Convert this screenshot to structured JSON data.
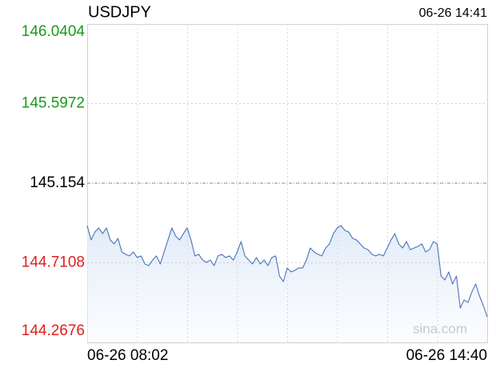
{
  "chart_data": {
    "type": "line",
    "title": "USDJPY",
    "timestamp": "06-26 14:41",
    "watermark": "sina.com",
    "categories": [
      "06-26 08:02",
      null,
      null,
      null,
      null,
      null,
      null,
      null,
      null,
      null,
      null,
      null,
      null,
      null,
      null,
      null,
      null,
      null,
      null,
      null,
      null,
      null,
      null,
      null,
      null,
      null,
      null,
      null,
      null,
      null,
      null,
      null,
      null,
      null,
      null,
      null,
      null,
      null,
      null,
      null,
      null,
      null,
      null,
      null,
      null,
      null,
      null,
      null,
      null,
      null,
      null,
      null,
      null,
      null,
      null,
      null,
      null,
      null,
      null,
      null,
      null,
      null,
      null,
      null,
      null,
      null,
      null,
      null,
      null,
      null,
      null,
      null,
      null,
      null,
      null,
      null,
      null,
      null,
      null,
      null,
      null,
      null,
      null,
      null,
      null,
      null,
      null,
      null,
      null,
      null,
      null,
      null,
      null,
      null,
      null,
      null,
      null,
      null,
      null,
      null,
      null,
      null,
      null,
      null,
      "06-26 14:40"
    ],
    "series": [
      {
        "name": "USDJPY",
        "color": "#4a74b8",
        "values": [
          144.918,
          144.838,
          144.882,
          144.905,
          144.873,
          144.905,
          144.838,
          144.816,
          144.847,
          144.771,
          144.758,
          144.749,
          144.771,
          144.74,
          144.749,
          144.704,
          144.695,
          144.726,
          144.749,
          144.704,
          144.771,
          144.838,
          144.905,
          144.86,
          144.838,
          144.873,
          144.905,
          144.838,
          144.749,
          144.758,
          144.726,
          144.713,
          144.726,
          144.695,
          144.749,
          144.758,
          144.74,
          144.749,
          144.726,
          144.771,
          144.829,
          144.749,
          144.726,
          144.704,
          144.74,
          144.704,
          144.726,
          144.695,
          144.74,
          144.749,
          144.637,
          144.606,
          144.682,
          144.66,
          144.669,
          144.682,
          144.682,
          144.726,
          144.793,
          144.771,
          144.758,
          144.749,
          144.793,
          144.816,
          144.873,
          144.905,
          144.918,
          144.891,
          144.882,
          144.847,
          144.838,
          144.816,
          144.793,
          144.784,
          144.758,
          144.749,
          144.758,
          144.749,
          144.793,
          144.838,
          144.873,
          144.816,
          144.793,
          144.829,
          144.784,
          144.793,
          144.802,
          144.816,
          144.771,
          144.784,
          144.829,
          144.816,
          144.637,
          144.615,
          144.66,
          144.593,
          144.637,
          144.459,
          144.504,
          144.49,
          144.548,
          144.593,
          144.526,
          144.472,
          144.41
        ]
      }
    ],
    "ylim": [
      144.2676,
      146.0404
    ],
    "yticks": [
      146.0404,
      145.5972,
      145.154,
      144.7108,
      144.2676
    ],
    "grid": true
  }
}
